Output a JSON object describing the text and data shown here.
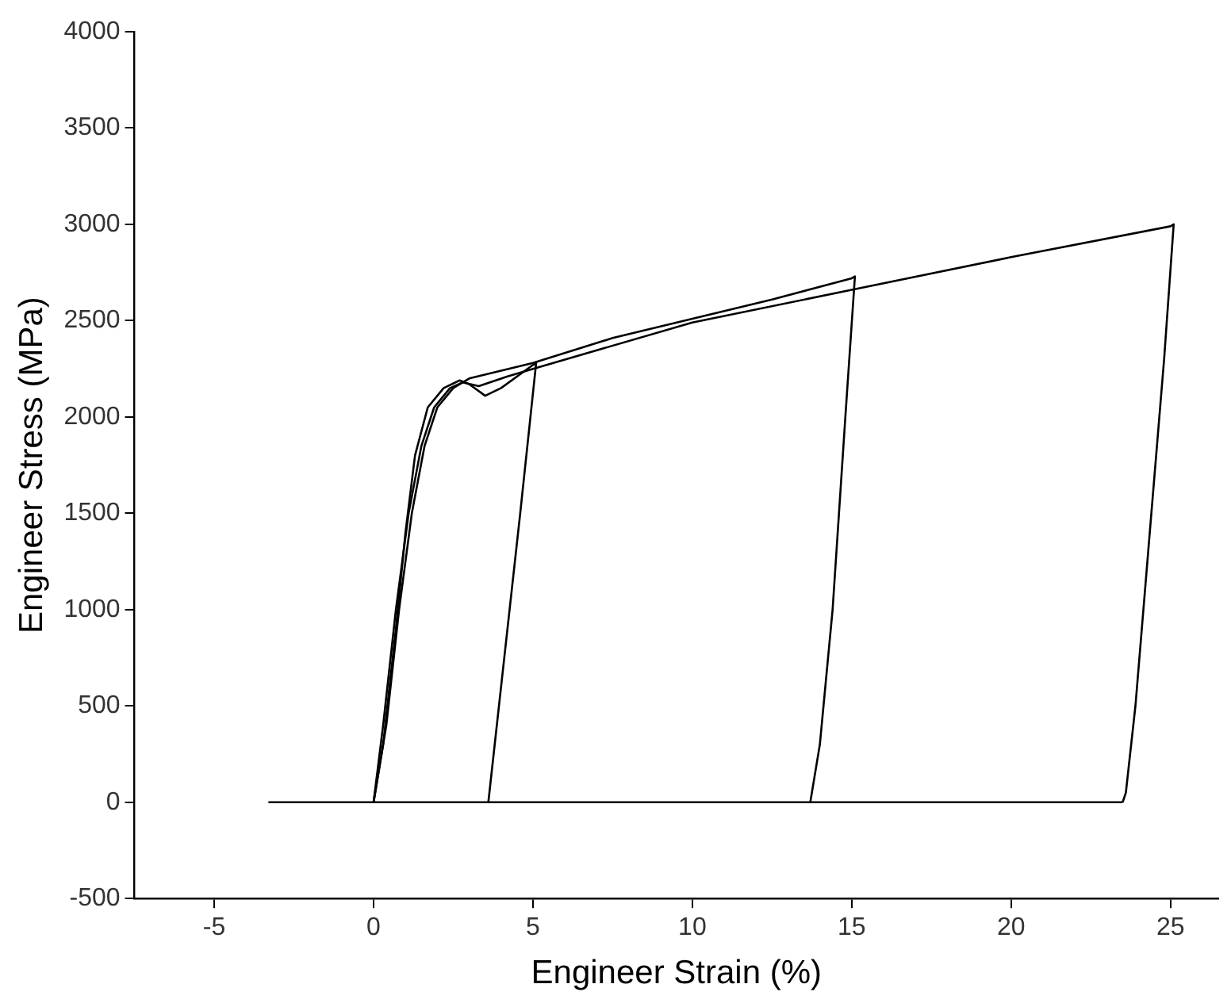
{
  "chart_data": {
    "type": "line",
    "xlabel": "Engineer Strain (%)",
    "ylabel": "Engineer Stress (MPa)",
    "xlim": [
      -7.5,
      26.5
    ],
    "xticks": [
      -5,
      0,
      5,
      10,
      15,
      20,
      25
    ],
    "ylim": [
      -500,
      4000
    ],
    "yticks": [
      -500,
      0,
      500,
      1000,
      1500,
      2000,
      2500,
      3000,
      3500,
      4000
    ],
    "grid": false,
    "legend": false,
    "marker": "none",
    "line_style": "solid",
    "series": [
      {
        "color": "#000000",
        "x": [
          -3.3,
          23.5
        ],
        "values": [
          0,
          0
        ]
      },
      {
        "color": "#000000",
        "x": [
          0,
          0.3,
          0.7,
          1.0,
          1.3,
          1.7,
          2.2,
          2.7,
          3.0,
          3.5,
          4.0,
          5.0,
          5.1,
          4.6,
          4.0,
          3.6
        ],
        "values": [
          0,
          300,
          900,
          1400,
          1800,
          2050,
          2150,
          2190,
          2170,
          2110,
          2150,
          2270,
          2280,
          1500,
          600,
          0
        ]
      },
      {
        "color": "#000000",
        "x": [
          0,
          0.4,
          0.8,
          1.2,
          1.6,
          2.0,
          2.5,
          3.0,
          4,
          5,
          7.5,
          10,
          12.5,
          15,
          15.1,
          14.8,
          14.4,
          14,
          13.7
        ],
        "values": [
          0,
          400,
          1000,
          1500,
          1850,
          2050,
          2150,
          2200,
          2240,
          2280,
          2410,
          2510,
          2610,
          2720,
          2730,
          2000,
          1000,
          300,
          0
        ]
      },
      {
        "color": "#000000",
        "x": [
          0,
          0.3,
          0.7,
          1.1,
          1.5,
          1.9,
          2.4,
          2.8,
          3.3,
          4.2,
          5,
          10,
          15,
          20,
          25,
          25.1,
          24.8,
          24.3,
          23.9,
          23.6,
          23.5
        ],
        "values": [
          0,
          400,
          1000,
          1500,
          1850,
          2050,
          2150,
          2180,
          2160,
          2210,
          2250,
          2490,
          2660,
          2830,
          2990,
          3000,
          2300,
          1300,
          500,
          50,
          0
        ]
      }
    ]
  }
}
